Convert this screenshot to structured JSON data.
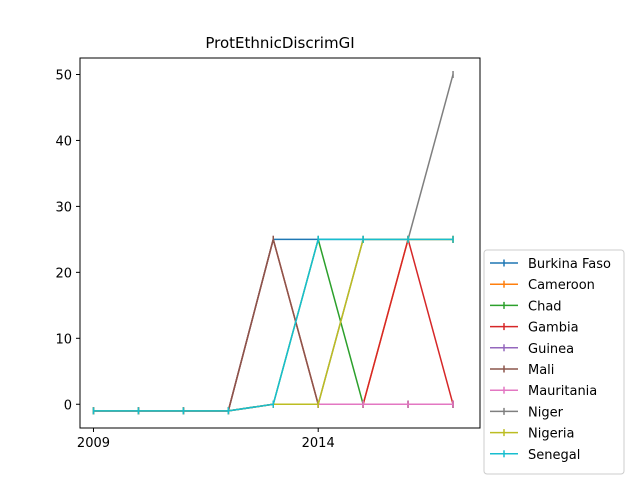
{
  "chart_data": {
    "type": "line",
    "title": "ProtEthnicDiscrimGI",
    "xlabel": "",
    "ylabel": "",
    "x": [
      2009,
      2010,
      2011,
      2012,
      2013,
      2014,
      2015,
      2016,
      2017
    ],
    "xticks": [
      2009,
      2014
    ],
    "xlim": [
      2008.7,
      2017.6
    ],
    "yticks": [
      0,
      10,
      20,
      30,
      40,
      50
    ],
    "ylim": [
      -3.6,
      52.5
    ],
    "grid": false,
    "legend_position": "lower-right-outside",
    "series": [
      {
        "name": "Burkina Faso",
        "color": "#1f77b4",
        "values": [
          -1,
          -1,
          -1,
          -1,
          25,
          25,
          25,
          25,
          25
        ]
      },
      {
        "name": "Cameroon",
        "color": "#ff7f0e",
        "values": [
          -1,
          -1,
          -1,
          -1,
          0,
          0,
          0,
          25,
          25
        ]
      },
      {
        "name": "Chad",
        "color": "#2ca02c",
        "values": [
          -1,
          -1,
          -1,
          -1,
          0,
          25,
          0,
          0,
          0
        ]
      },
      {
        "name": "Gambia",
        "color": "#d62728",
        "values": [
          -1,
          -1,
          -1,
          -1,
          25,
          0,
          0,
          25,
          0
        ]
      },
      {
        "name": "Guinea",
        "color": "#9467bd",
        "values": [
          -1,
          -1,
          -1,
          -1,
          0,
          0,
          0,
          0,
          0
        ]
      },
      {
        "name": "Mali",
        "color": "#8c564b",
        "values": [
          -1,
          -1,
          -1,
          -1,
          25,
          0,
          0,
          0,
          0
        ]
      },
      {
        "name": "Mauritania",
        "color": "#e377c2",
        "values": [
          -1,
          -1,
          -1,
          -1,
          0,
          0,
          0,
          0,
          0
        ]
      },
      {
        "name": "Niger",
        "color": "#7f7f7f",
        "values": [
          -1,
          -1,
          -1,
          -1,
          0,
          0,
          25,
          25,
          50
        ]
      },
      {
        "name": "Nigeria",
        "color": "#bcbd22",
        "values": [
          -1,
          -1,
          -1,
          -1,
          0,
          0,
          25,
          25,
          25
        ]
      },
      {
        "name": "Senegal",
        "color": "#17becf",
        "values": [
          -1,
          -1,
          -1,
          -1,
          0,
          25,
          25,
          25,
          25
        ]
      }
    ]
  }
}
